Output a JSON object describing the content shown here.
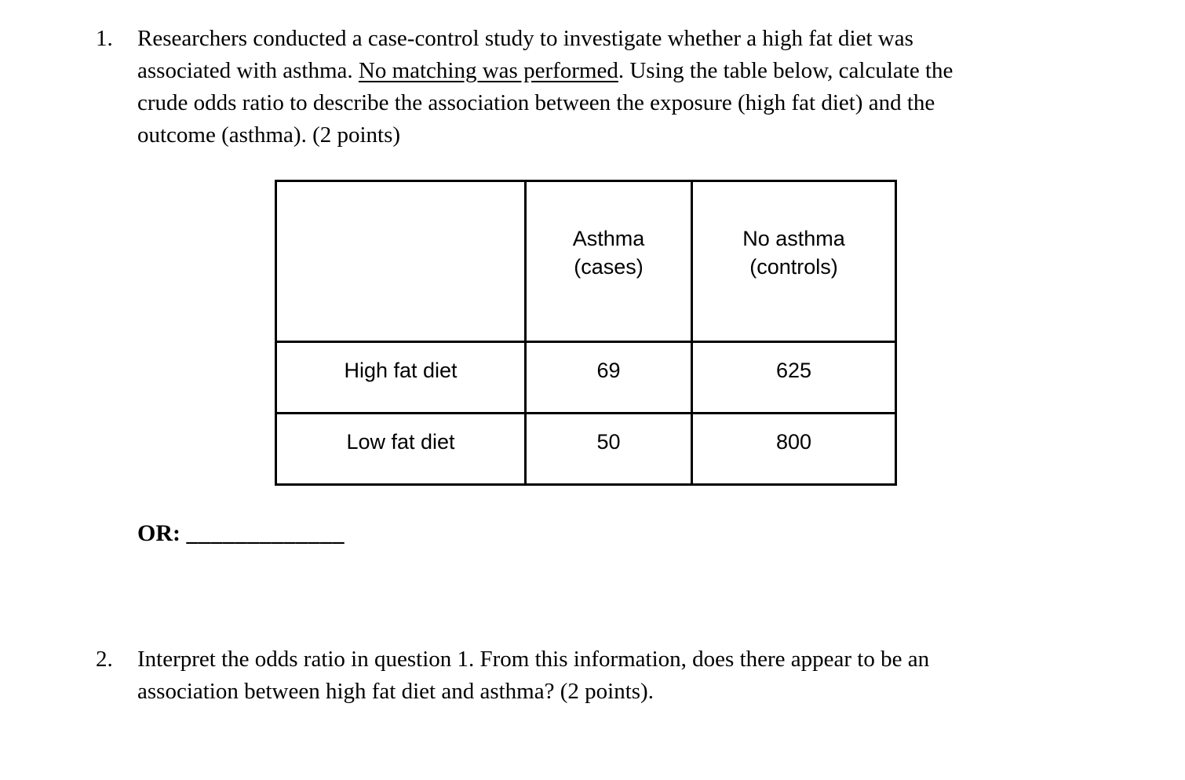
{
  "page": {
    "background_color": "#ffffff",
    "text_color": "#000000"
  },
  "question1": {
    "number": "1.",
    "line1": "Researchers conducted a case-control study to investigate whether a high fat diet was",
    "line2_pre": "associated with asthma. ",
    "line2_underlined": "No matching was performed",
    "line2_post": ". Using the table below, calculate the",
    "line3": "crude odds ratio to describe the association between the exposure (high fat diet) and the",
    "line4": "outcome (asthma). (2 points)"
  },
  "table": {
    "header": {
      "row_label": "",
      "col_cases_line1": "Asthma",
      "col_cases_line2": "(cases)",
      "col_controls_line1": "No asthma",
      "col_controls_line2": "(controls)"
    },
    "rows": [
      {
        "label": "High fat diet",
        "cases": "69",
        "controls": "625"
      },
      {
        "label": "Low fat diet",
        "cases": "50",
        "controls": "800"
      }
    ]
  },
  "answer": {
    "label": "OR:",
    "blank": "_____________"
  },
  "question2": {
    "number": "2.",
    "line1": "Interpret the odds ratio in question 1. From this information, does there appear to be an",
    "line2": "association between high fat diet and asthma? (2 points)."
  }
}
